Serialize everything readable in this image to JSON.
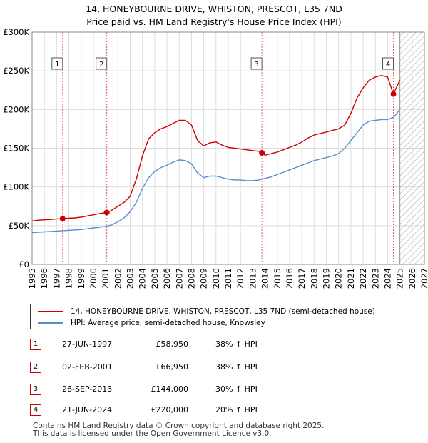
{
  "title_line1": "14, HONEYBOURNE DRIVE, WHISTON, PRESCOT, L35 7ND",
  "title_line2": "Price paid vs. HM Land Registry's House Price Index (HPI)",
  "colors": {
    "red": "#cc0000",
    "blue": "#5b8ccc",
    "grid": "#dddddd",
    "marker_line": "#e06060",
    "future_hatch": "#bbbbbb"
  },
  "chart_data": {
    "type": "line",
    "title": "14, HONEYBOURNE DRIVE, WHISTON, PRESCOT, L35 7ND — Price paid vs. HM Land Registry's House Price Index (HPI)",
    "xlabel": "",
    "ylabel": "",
    "xlim": [
      1995.0,
      2027.0
    ],
    "ylim": [
      0,
      300000
    ],
    "x_ticks": [
      "1995",
      "1996",
      "1997",
      "1998",
      "1999",
      "2000",
      "2001",
      "2002",
      "2003",
      "2004",
      "2005",
      "2006",
      "2007",
      "2008",
      "2009",
      "2010",
      "2011",
      "2012",
      "2013",
      "2014",
      "2015",
      "2016",
      "2017",
      "2018",
      "2019",
      "2020",
      "2021",
      "2022",
      "2023",
      "2024",
      "2025",
      "2026",
      "2027"
    ],
    "y_ticks": [
      {
        "value": 0,
        "label": "£0"
      },
      {
        "value": 50000,
        "label": "£50K"
      },
      {
        "value": 100000,
        "label": "£100K"
      },
      {
        "value": 150000,
        "label": "£150K"
      },
      {
        "value": 200000,
        "label": "£200K"
      },
      {
        "value": 250000,
        "label": "£250K"
      },
      {
        "value": 300000,
        "label": "£300K"
      }
    ],
    "future_from": 2025.0,
    "series": [
      {
        "name": "14, HONEYBOURNE DRIVE, WHISTON, PRESCOT, L35 7ND (semi-detached house)",
        "color": "#cc0000",
        "x": [
          1995.0,
          1995.5,
          1996.0,
          1996.5,
          1997.0,
          1997.49,
          1998.0,
          1998.5,
          1999.0,
          1999.5,
          2000.0,
          2000.5,
          2001.09,
          2001.5,
          2002.0,
          2002.5,
          2003.0,
          2003.5,
          2004.0,
          2004.5,
          2005.0,
          2005.5,
          2006.0,
          2006.5,
          2007.0,
          2007.5,
          2008.0,
          2008.5,
          2009.0,
          2009.5,
          2010.0,
          2010.5,
          2011.0,
          2011.5,
          2012.0,
          2012.5,
          2013.0,
          2013.5,
          2013.74,
          2014.0,
          2014.5,
          2015.0,
          2015.5,
          2016.0,
          2016.5,
          2017.0,
          2017.5,
          2018.0,
          2018.5,
          2019.0,
          2019.5,
          2020.0,
          2020.5,
          2021.0,
          2021.5,
          2022.0,
          2022.5,
          2023.0,
          2023.5,
          2024.0,
          2024.47,
          2024.7,
          2025.0
        ],
        "y": [
          56000,
          57000,
          57500,
          58000,
          58500,
          58950,
          59500,
          60000,
          61000,
          62500,
          64000,
          65500,
          66950,
          70000,
          75000,
          80000,
          88000,
          110000,
          140000,
          162000,
          170000,
          175000,
          178000,
          182000,
          186000,
          186000,
          180000,
          160000,
          153000,
          157000,
          158000,
          154000,
          151000,
          150000,
          149000,
          148000,
          147000,
          146000,
          144000,
          141000,
          143000,
          145000,
          148000,
          151000,
          154000,
          158000,
          163000,
          167000,
          169000,
          171000,
          173000,
          175000,
          180000,
          195000,
          215000,
          228000,
          238000,
          242000,
          244000,
          242000,
          220000,
          228000,
          238000
        ]
      },
      {
        "name": "HPI: Average price, semi-detached house, Knowsley",
        "color": "#5b8ccc",
        "x": [
          1995.0,
          1995.5,
          1996.0,
          1996.5,
          1997.0,
          1997.5,
          1998.0,
          1998.5,
          1999.0,
          1999.5,
          2000.0,
          2000.5,
          2001.0,
          2001.5,
          2002.0,
          2002.5,
          2003.0,
          2003.5,
          2004.0,
          2004.5,
          2005.0,
          2005.5,
          2006.0,
          2006.5,
          2007.0,
          2007.5,
          2008.0,
          2008.5,
          2009.0,
          2009.5,
          2010.0,
          2010.5,
          2011.0,
          2011.5,
          2012.0,
          2012.5,
          2013.0,
          2013.5,
          2014.0,
          2014.5,
          2015.0,
          2015.5,
          2016.0,
          2016.5,
          2017.0,
          2017.5,
          2018.0,
          2018.5,
          2019.0,
          2019.5,
          2020.0,
          2020.5,
          2021.0,
          2021.5,
          2022.0,
          2022.5,
          2023.0,
          2023.5,
          2024.0,
          2024.5,
          2025.0
        ],
        "y": [
          41000,
          41500,
          42000,
          42500,
          43000,
          43500,
          44000,
          44500,
          45000,
          46000,
          47000,
          48000,
          49000,
          51000,
          55000,
          60000,
          68000,
          80000,
          98000,
          112000,
          120000,
          125000,
          128000,
          132000,
          135000,
          134000,
          130000,
          118000,
          112000,
          114000,
          114000,
          112000,
          110000,
          109000,
          109000,
          108000,
          108000,
          109000,
          111000,
          113000,
          116000,
          119000,
          122000,
          125000,
          128000,
          131000,
          134000,
          136000,
          138000,
          140000,
          143000,
          150000,
          160000,
          170000,
          180000,
          185000,
          186000,
          187000,
          187000,
          190000,
          200000
        ]
      }
    ],
    "sales": [
      {
        "n": "1",
        "x": 1997.49,
        "y": 58950,
        "date": "27-JUN-1997",
        "price": "£58,950",
        "hpi": "38% ↑ HPI"
      },
      {
        "n": "2",
        "x": 2001.09,
        "y": 66950,
        "date": "02-FEB-2001",
        "price": "£66,950",
        "hpi": "38% ↑ HPI"
      },
      {
        "n": "3",
        "x": 2013.74,
        "y": 144000,
        "date": "26-SEP-2013",
        "price": "£144,000",
        "hpi": "30% ↑ HPI"
      },
      {
        "n": "4",
        "x": 2024.47,
        "y": 220000,
        "date": "21-JUN-2024",
        "price": "£220,000",
        "hpi": "20% ↑ HPI"
      }
    ]
  },
  "legend": {
    "red_label": "14, HONEYBOURNE DRIVE, WHISTON, PRESCOT, L35 7ND (semi-detached house)",
    "blue_label": "HPI: Average price, semi-detached house, Knowsley"
  },
  "footer": {
    "line1": "Contains HM Land Registry data © Crown copyright and database right 2025.",
    "line2": "This data is licensed under the Open Government Licence v3.0."
  }
}
